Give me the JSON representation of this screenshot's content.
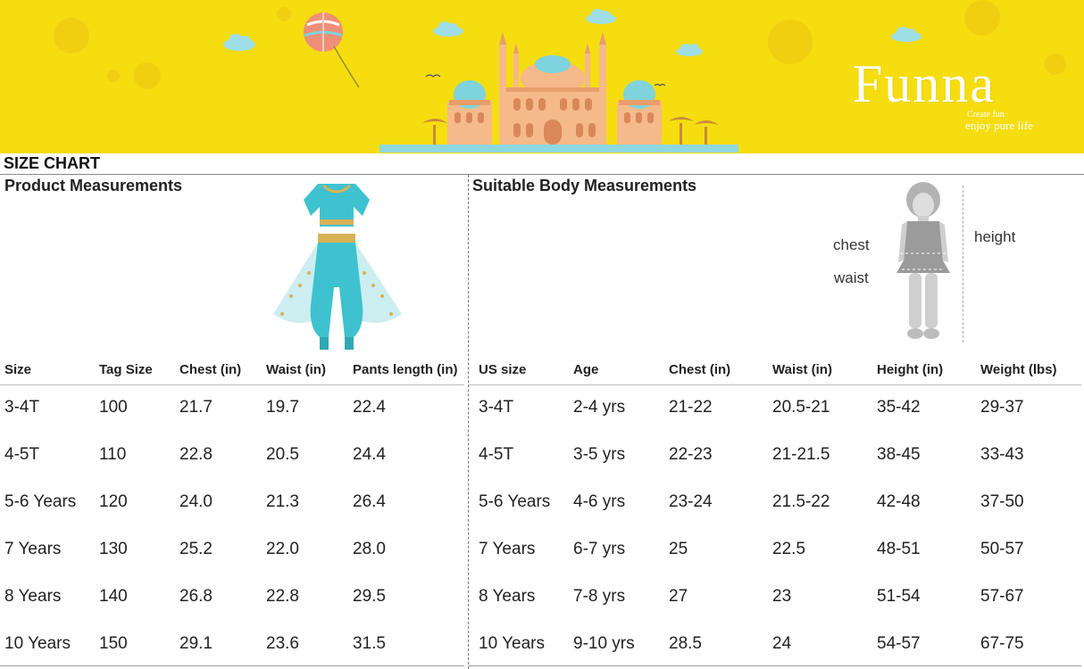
{
  "brand": {
    "name": "Funna",
    "tagline1": "Create fun",
    "tagline2": "enjoy pure life"
  },
  "page_title": "SIZE CHART",
  "product": {
    "title": "Product Measurements",
    "headers": [
      "Size",
      "Tag Size",
      "Chest (in)",
      "Waist (in)",
      "Pants length (in)"
    ],
    "rows": [
      [
        "3-4T",
        "100",
        "21.7",
        "19.7",
        "22.4"
      ],
      [
        "4-5T",
        "110",
        "22.8",
        "20.5",
        "24.4"
      ],
      [
        "5-6 Years",
        "120",
        "24.0",
        "21.3",
        "26.4"
      ],
      [
        "7 Years",
        "130",
        "25.2",
        "22.0",
        "28.0"
      ],
      [
        "8 Years",
        "140",
        "26.8",
        "22.8",
        "29.5"
      ],
      [
        "10 Years",
        "150",
        "29.1",
        "23.6",
        "31.5"
      ]
    ]
  },
  "body": {
    "title": "Suitable Body Measurements",
    "labels": {
      "chest": "chest",
      "waist": "waist",
      "height": "height"
    },
    "headers": [
      "US size",
      "Age",
      "Chest (in)",
      "Waist (in)",
      "Height (in)",
      "Weight (lbs)"
    ],
    "rows": [
      [
        "3-4T",
        "2-4 yrs",
        "21-22",
        "20.5-21",
        "35-42",
        "29-37"
      ],
      [
        "4-5T",
        "3-5 yrs",
        "22-23",
        "21-21.5",
        "38-45",
        "33-43"
      ],
      [
        "5-6 Years",
        "4-6 yrs",
        "23-24",
        "21.5-22",
        "42-48",
        "37-50"
      ],
      [
        "7 Years",
        "6-7 yrs",
        "25",
        "22.5",
        "48-51",
        "50-57"
      ],
      [
        "8 Years",
        "7-8 yrs",
        "27",
        "23",
        "51-54",
        "57-67"
      ],
      [
        "10 Years",
        "9-10 yrs",
        "28.5",
        "24",
        "54-57",
        "67-75"
      ]
    ]
  },
  "colors": {
    "banner": "#f5dd10",
    "palace": "#f6b98a",
    "dome": "#7fd3dc",
    "costume": "#3fc2cf"
  }
}
